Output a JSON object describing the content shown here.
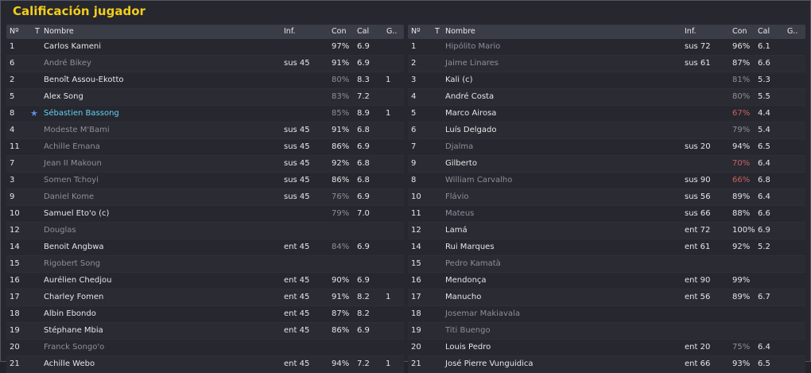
{
  "title": "Calificación jugador",
  "columns": {
    "num": "Nº",
    "t": "T",
    "name": "Nombre",
    "inf": "Inf.",
    "con": "Con",
    "cal": "Cal",
    "g": "G.."
  },
  "left_rows": [
    {
      "num": "1",
      "t": "",
      "name": "Carlos Kameni",
      "inf": "",
      "con": "97%",
      "cal": "6.9",
      "g": "",
      "style": "",
      "con_style": ""
    },
    {
      "num": "6",
      "t": "",
      "name": "André Bikey",
      "inf": "sus 45",
      "con": "91%",
      "cal": "6.9",
      "g": "",
      "style": "dim",
      "con_style": ""
    },
    {
      "num": "2",
      "t": "",
      "name": "Benoît Assou-Ekotto",
      "inf": "",
      "con": "80%",
      "cal": "8.3",
      "g": "1",
      "style": "",
      "con_style": "dim"
    },
    {
      "num": "5",
      "t": "",
      "name": "Alex Song",
      "inf": "",
      "con": "83%",
      "cal": "7.2",
      "g": "",
      "style": "",
      "con_style": "dim"
    },
    {
      "num": "8",
      "t": "★",
      "name": "Sébastien Bassong",
      "inf": "",
      "con": "85%",
      "cal": "8.9",
      "g": "1",
      "style": "hl",
      "con_style": "dim"
    },
    {
      "num": "4",
      "t": "",
      "name": "Modeste M'Bami",
      "inf": "sus 45",
      "con": "91%",
      "cal": "6.8",
      "g": "",
      "style": "dim",
      "con_style": ""
    },
    {
      "num": "11",
      "t": "",
      "name": "Achille Emana",
      "inf": "sus 45",
      "con": "86%",
      "cal": "6.9",
      "g": "",
      "style": "dim",
      "con_style": ""
    },
    {
      "num": "7",
      "t": "",
      "name": "Jean II Makoun",
      "inf": "sus 45",
      "con": "92%",
      "cal": "6.8",
      "g": "",
      "style": "dim",
      "con_style": ""
    },
    {
      "num": "3",
      "t": "",
      "name": "Somen Tchoyi",
      "inf": "sus 45",
      "con": "86%",
      "cal": "6.8",
      "g": "",
      "style": "dim",
      "con_style": ""
    },
    {
      "num": "9",
      "t": "",
      "name": "Daniel Kome",
      "inf": "sus 45",
      "con": "76%",
      "cal": "6.9",
      "g": "",
      "style": "dim",
      "con_style": "dim"
    },
    {
      "num": "10",
      "t": "",
      "name": "Samuel Eto'o (c)",
      "inf": "",
      "con": "79%",
      "cal": "7.0",
      "g": "",
      "style": "",
      "con_style": "dim"
    },
    {
      "num": "12",
      "t": "",
      "name": "Douglas",
      "inf": "",
      "con": "",
      "cal": "",
      "g": "",
      "style": "dim",
      "con_style": ""
    },
    {
      "num": "14",
      "t": "",
      "name": "Benoit Angbwa",
      "inf": "ent 45",
      "con": "84%",
      "cal": "6.9",
      "g": "",
      "style": "",
      "con_style": "dim"
    },
    {
      "num": "15",
      "t": "",
      "name": "Rigobert Song",
      "inf": "",
      "con": "",
      "cal": "",
      "g": "",
      "style": "dim",
      "con_style": ""
    },
    {
      "num": "16",
      "t": "",
      "name": "Aurélien Chedjou",
      "inf": "ent 45",
      "con": "90%",
      "cal": "6.9",
      "g": "",
      "style": "",
      "con_style": ""
    },
    {
      "num": "17",
      "t": "",
      "name": "Charley Fomen",
      "inf": "ent 45",
      "con": "91%",
      "cal": "8.2",
      "g": "1",
      "style": "",
      "con_style": ""
    },
    {
      "num": "18",
      "t": "",
      "name": "Albin Ebondo",
      "inf": "ent 45",
      "con": "87%",
      "cal": "8.2",
      "g": "",
      "style": "",
      "con_style": ""
    },
    {
      "num": "19",
      "t": "",
      "name": "Stéphane Mbia",
      "inf": "ent 45",
      "con": "86%",
      "cal": "6.9",
      "g": "",
      "style": "",
      "con_style": ""
    },
    {
      "num": "20",
      "t": "",
      "name": "Franck Songo'o",
      "inf": "",
      "con": "",
      "cal": "",
      "g": "",
      "style": "dim",
      "con_style": ""
    },
    {
      "num": "21",
      "t": "",
      "name": "Achille Webo",
      "inf": "ent 45",
      "con": "94%",
      "cal": "7.2",
      "g": "1",
      "style": "",
      "con_style": ""
    }
  ],
  "right_rows": [
    {
      "num": "1",
      "t": "",
      "name": "Hipólito Mario",
      "inf": "sus 72",
      "con": "96%",
      "cal": "6.1",
      "g": "",
      "style": "dim",
      "con_style": ""
    },
    {
      "num": "2",
      "t": "",
      "name": "Jaime Linares",
      "inf": "sus 61",
      "con": "87%",
      "cal": "6.6",
      "g": "",
      "style": "dim",
      "con_style": ""
    },
    {
      "num": "3",
      "t": "",
      "name": "Kali (c)",
      "inf": "",
      "con": "81%",
      "cal": "5.3",
      "g": "",
      "style": "",
      "con_style": "dim"
    },
    {
      "num": "4",
      "t": "",
      "name": "André Costa",
      "inf": "",
      "con": "80%",
      "cal": "5.5",
      "g": "",
      "style": "",
      "con_style": "dim"
    },
    {
      "num": "5",
      "t": "",
      "name": "Marco Airosa",
      "inf": "",
      "con": "67%",
      "cal": "4.4",
      "g": "",
      "style": "",
      "con_style": "red"
    },
    {
      "num": "6",
      "t": "",
      "name": "Luís Delgado",
      "inf": "",
      "con": "79%",
      "cal": "5.4",
      "g": "",
      "style": "",
      "con_style": "dim"
    },
    {
      "num": "7",
      "t": "",
      "name": "Djalma",
      "inf": "sus 20",
      "con": "94%",
      "cal": "6.5",
      "g": "",
      "style": "dim",
      "con_style": ""
    },
    {
      "num": "9",
      "t": "",
      "name": "Gilberto",
      "inf": "",
      "con": "70%",
      "cal": "6.4",
      "g": "",
      "style": "",
      "con_style": "red"
    },
    {
      "num": "8",
      "t": "",
      "name": "William Carvalho",
      "inf": "sus 90",
      "con": "66%",
      "cal": "6.8",
      "g": "",
      "style": "dim",
      "con_style": "red"
    },
    {
      "num": "10",
      "t": "",
      "name": "Flávio",
      "inf": "sus 56",
      "con": "89%",
      "cal": "6.4",
      "g": "",
      "style": "dim",
      "con_style": ""
    },
    {
      "num": "11",
      "t": "",
      "name": "Mateus",
      "inf": "sus 66",
      "con": "88%",
      "cal": "6.6",
      "g": "",
      "style": "dim",
      "con_style": ""
    },
    {
      "num": "12",
      "t": "",
      "name": "Lamá",
      "inf": "ent 72",
      "con": "100%",
      "cal": "6.9",
      "g": "",
      "style": "",
      "con_style": ""
    },
    {
      "num": "14",
      "t": "",
      "name": "Rui Marques",
      "inf": "ent 61",
      "con": "92%",
      "cal": "5.2",
      "g": "",
      "style": "",
      "con_style": ""
    },
    {
      "num": "15",
      "t": "",
      "name": "Pedro Kamatà",
      "inf": "",
      "con": "",
      "cal": "",
      "g": "",
      "style": "dim",
      "con_style": ""
    },
    {
      "num": "16",
      "t": "",
      "name": "Mendonça",
      "inf": "ent 90",
      "con": "99%",
      "cal": "",
      "g": "",
      "style": "",
      "con_style": ""
    },
    {
      "num": "17",
      "t": "",
      "name": "Manucho",
      "inf": "ent 56",
      "con": "89%",
      "cal": "6.7",
      "g": "",
      "style": "",
      "con_style": ""
    },
    {
      "num": "18",
      "t": "",
      "name": "Josemar Makiavala",
      "inf": "",
      "con": "",
      "cal": "",
      "g": "",
      "style": "dim",
      "con_style": ""
    },
    {
      "num": "19",
      "t": "",
      "name": "Titi Buengo",
      "inf": "",
      "con": "",
      "cal": "",
      "g": "",
      "style": "dim",
      "con_style": ""
    },
    {
      "num": "20",
      "t": "",
      "name": "Louis Pedro",
      "inf": "ent 20",
      "con": "75%",
      "cal": "6.4",
      "g": "",
      "style": "",
      "con_style": "dim"
    },
    {
      "num": "21",
      "t": "",
      "name": "José Pierre Vunguidica",
      "inf": "ent 66",
      "con": "93%",
      "cal": "6.5",
      "g": "",
      "style": "",
      "con_style": ""
    }
  ],
  "colors": {
    "title": "#f2cd1c",
    "highlight": "#63d2f2",
    "dim": "#8e8f98",
    "low_condition": "#c96262",
    "star_icon": "#5b8fe0"
  },
  "icons": {
    "star": "star-icon"
  }
}
